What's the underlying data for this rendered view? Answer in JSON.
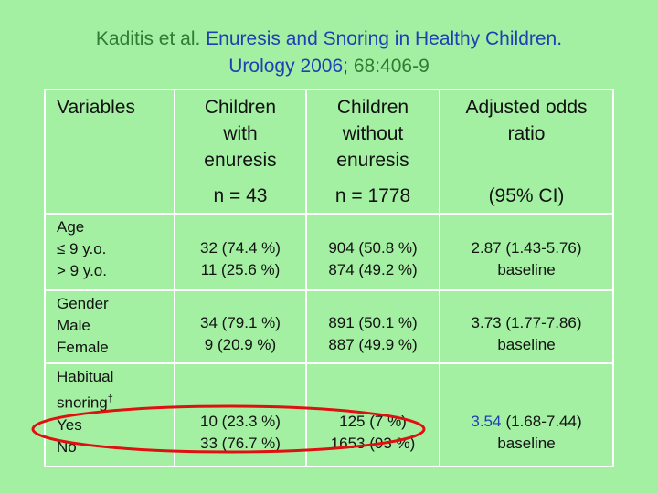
{
  "header": {
    "title_parts": [
      "Kaditis et al.",
      "Enuresis and Snoring in Healthy Children.",
      "Urology 2006;",
      "68:406-9"
    ]
  },
  "table": {
    "columns": [
      [
        "Variables"
      ],
      [
        "Children",
        "with",
        "enuresis"
      ],
      [
        "Children",
        "without",
        "enuresis"
      ],
      [
        "Adjusted odds",
        "ratio"
      ]
    ],
    "n_row": [
      "n = 43",
      "n = 1778",
      "(95% CI)"
    ],
    "rows": [
      {
        "variable": [
          "Age",
          "≤ 9 y.o.",
          "> 9 y.o."
        ],
        "cells": [
          [
            "32 (74.4 %)",
            "11 (25.6 %)"
          ],
          [
            "904 (50.8 %)",
            "874 (49.2 %)"
          ],
          [
            "2.87 (1.43-5.76)",
            "baseline"
          ]
        ]
      },
      {
        "variable": [
          "Gender",
          "Male",
          "Female"
        ],
        "cells": [
          [
            "34 (79.1 %)",
            "9 (20.9 %)"
          ],
          [
            "891 (50.1 %)",
            "887 (49.9 %)"
          ],
          [
            "3.73 (1.77-7.86)",
            "baseline"
          ]
        ]
      },
      {
        "variable": [
          "Habitual",
          "snoring",
          "Yes",
          "No"
        ],
        "footnote_mark": "†",
        "cells": [
          [
            "10 (23.3 %)",
            "33 (76.7 %)"
          ],
          [
            "125 (7 %)",
            "1653 (93 %)"
          ],
          [
            [
              "3.54",
              "(1.68-7.44)"
            ],
            "baseline"
          ]
        ]
      }
    ]
  }
}
